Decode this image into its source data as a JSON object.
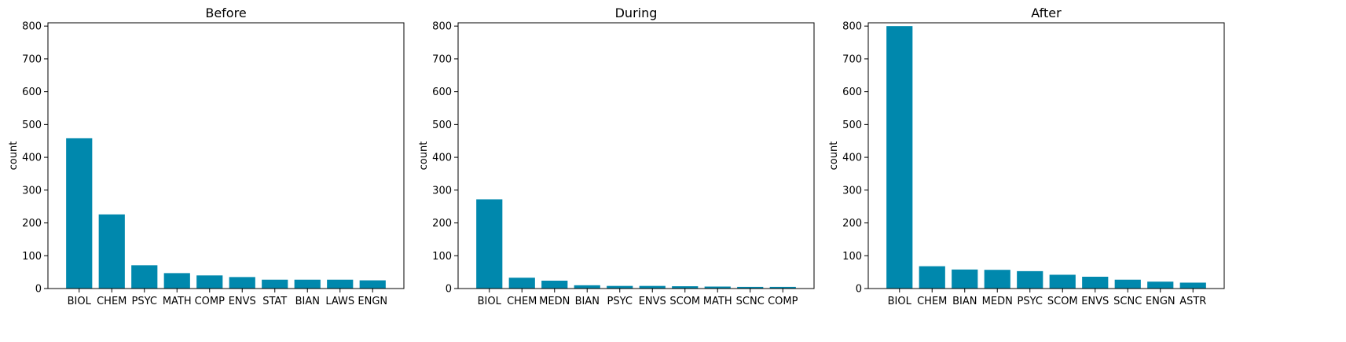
{
  "chart_data": [
    {
      "type": "bar",
      "title": "Before",
      "ylabel": "count",
      "xlabel": "",
      "ylim": [
        0,
        810
      ],
      "yticks": [
        0,
        100,
        200,
        300,
        400,
        500,
        600,
        700,
        800
      ],
      "categories": [
        "BIOL",
        "CHEM",
        "PSYC",
        "MATH",
        "COMP",
        "ENVS",
        "STAT",
        "BIAN",
        "LAWS",
        "ENGN"
      ],
      "values": [
        458,
        226,
        71,
        47,
        40,
        35,
        27,
        27,
        27,
        25
      ],
      "bar_color": "#0088ad"
    },
    {
      "type": "bar",
      "title": "During",
      "ylabel": "count",
      "xlabel": "",
      "ylim": [
        0,
        810
      ],
      "yticks": [
        0,
        100,
        200,
        300,
        400,
        500,
        600,
        700,
        800
      ],
      "categories": [
        "BIOL",
        "CHEM",
        "MEDN",
        "BIAN",
        "PSYC",
        "ENVS",
        "SCOM",
        "MATH",
        "SCNC",
        "COMP"
      ],
      "values": [
        272,
        33,
        24,
        10,
        8,
        8,
        7,
        6,
        5,
        5
      ],
      "bar_color": "#0088ad"
    },
    {
      "type": "bar",
      "title": "After",
      "ylabel": "count",
      "xlabel": "",
      "ylim": [
        0,
        810
      ],
      "yticks": [
        0,
        100,
        200,
        300,
        400,
        500,
        600,
        700,
        800
      ],
      "categories": [
        "BIOL",
        "CHEM",
        "BIAN",
        "MEDN",
        "PSYC",
        "SCOM",
        "ENVS",
        "SCNC",
        "ENGN",
        "ASTR"
      ],
      "values": [
        800,
        68,
        58,
        57,
        53,
        42,
        36,
        27,
        21,
        18
      ],
      "bar_color": "#0088ad"
    }
  ]
}
